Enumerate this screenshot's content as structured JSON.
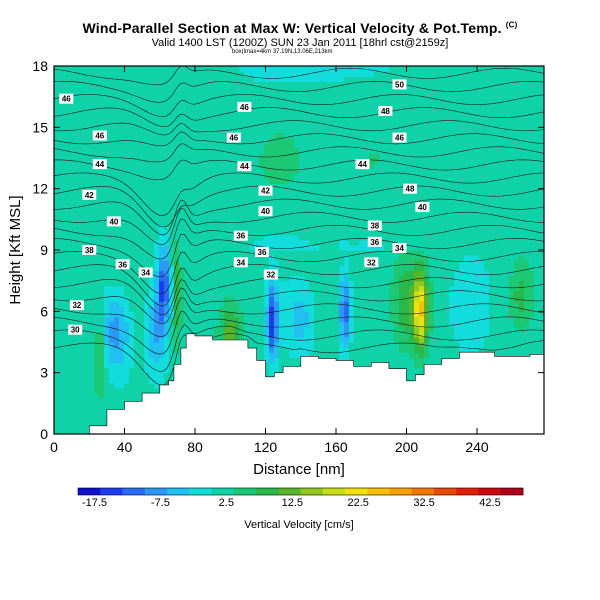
{
  "header": {
    "title": "Wind-Parallel Section at Max W: Vertical Velocity & Pot.Temp.",
    "title_mark": "(C)",
    "subtitle": "Valid 1400 LST (1200Z) SUN 23 Jan 2011 [18hrl cst@2159z]",
    "subtitle2": "box(lmax=4km 37.19N,13.06E,213km"
  },
  "chart_data": {
    "type": "heatmap",
    "title": "Wind-Parallel Section at Max W: Vertical Velocity & Pot.Temp.",
    "xlabel": "Distance [nm]",
    "ylabel": "Height [Kft MSL]",
    "xlim": [
      0,
      278
    ],
    "ylim": [
      0,
      18
    ],
    "x_ticks": [
      "0",
      "40",
      "80",
      "120",
      "160",
      "200",
      "240"
    ],
    "y_ticks": [
      "0",
      "3",
      "6",
      "9",
      "12",
      "15",
      "18"
    ],
    "x_tick_values": [
      0,
      40,
      80,
      120,
      160,
      200,
      240
    ],
    "y_tick_values": [
      0,
      3,
      6,
      9,
      12,
      15,
      18
    ],
    "colorbar": {
      "title": "Vertical Velocity [cm/s]",
      "min": -20,
      "max": 47.5,
      "tick_labels": [
        "-17.5",
        "-7.5",
        "2.5",
        "12.5",
        "22.5",
        "32.5",
        "42.5"
      ],
      "tick_values": [
        -17.5,
        -7.5,
        2.5,
        12.5,
        22.5,
        32.5,
        42.5
      ],
      "colors": [
        "#1010cc",
        "#1c3cf0",
        "#2a6cf8",
        "#2e98f8",
        "#20c0f0",
        "#12dcdc",
        "#10d2a8",
        "#1cc874",
        "#2ab84a",
        "#5ab42a",
        "#92c81e",
        "#c8dc18",
        "#f0e010",
        "#f8c008",
        "#f8a000",
        "#f07800",
        "#e84a00",
        "#e02000",
        "#c80a0a",
        "#b0001e"
      ]
    },
    "terrain": {
      "x": [
        0,
        10,
        20,
        30,
        40,
        50,
        60,
        65,
        68,
        72,
        75,
        80,
        90,
        100,
        110,
        115,
        120,
        125,
        130,
        140,
        150,
        160,
        170,
        180,
        190,
        200,
        205,
        210,
        220,
        230,
        240,
        250,
        260,
        270,
        278
      ],
      "z": [
        0,
        0,
        0.4,
        1.2,
        1.6,
        2.0,
        2.4,
        2.6,
        3.4,
        4.2,
        4.9,
        4.8,
        4.6,
        4.6,
        4.2,
        3.6,
        2.8,
        3.0,
        3.3,
        3.8,
        3.7,
        3.6,
        3.3,
        3.5,
        3.2,
        2.6,
        2.9,
        3.4,
        3.7,
        4.0,
        4.0,
        3.8,
        3.8,
        3.9,
        3.9
      ]
    },
    "theta_labels": [
      {
        "v": "30",
        "x": 12,
        "y": 5.1
      },
      {
        "v": "32",
        "x": 13,
        "y": 6.3
      },
      {
        "v": "34",
        "x": 52,
        "y": 7.9
      },
      {
        "v": "36",
        "x": 39,
        "y": 8.3
      },
      {
        "v": "38",
        "x": 20,
        "y": 9.0
      },
      {
        "v": "40",
        "x": 34,
        "y": 10.4
      },
      {
        "v": "42",
        "x": 20,
        "y": 11.7
      },
      {
        "v": "44",
        "x": 26,
        "y": 13.2
      },
      {
        "v": "46",
        "x": 26,
        "y": 14.6
      },
      {
        "v": "46",
        "x": 7,
        "y": 16.4
      },
      {
        "v": "32",
        "x": 123,
        "y": 7.8
      },
      {
        "v": "34",
        "x": 106,
        "y": 8.4
      },
      {
        "v": "36",
        "x": 118,
        "y": 8.9
      },
      {
        "v": "36",
        "x": 106,
        "y": 9.7
      },
      {
        "v": "40",
        "x": 120,
        "y": 10.9
      },
      {
        "v": "42",
        "x": 120,
        "y": 11.9
      },
      {
        "v": "44",
        "x": 108,
        "y": 13.1
      },
      {
        "v": "46",
        "x": 102,
        "y": 14.5
      },
      {
        "v": "46",
        "x": 108,
        "y": 16.0
      },
      {
        "v": "32",
        "x": 180,
        "y": 8.4
      },
      {
        "v": "34",
        "x": 196,
        "y": 9.1
      },
      {
        "v": "36",
        "x": 182,
        "y": 9.4
      },
      {
        "v": "38",
        "x": 182,
        "y": 10.2
      },
      {
        "v": "40",
        "x": 209,
        "y": 11.1
      },
      {
        "v": "48",
        "x": 202,
        "y": 12.0
      },
      {
        "v": "44",
        "x": 175,
        "y": 13.2
      },
      {
        "v": "46",
        "x": 196,
        "y": 14.5
      },
      {
        "v": "48",
        "x": 188,
        "y": 15.8
      },
      {
        "v": "50",
        "x": 196,
        "y": 17.1
      }
    ],
    "velocity_features": [
      {
        "x": 70,
        "y": 6.8,
        "w": 10,
        "sx": 2.5,
        "sy": 2.4
      },
      {
        "x": 62,
        "y": 7.3,
        "w": -14,
        "sx": 3.5,
        "sy": 1.8
      },
      {
        "x": 58,
        "y": 5.0,
        "w": -8,
        "sx": 6,
        "sy": 2.0
      },
      {
        "x": 26,
        "y": 4.0,
        "w": 8,
        "sx": 3,
        "sy": 2.0
      },
      {
        "x": 35,
        "y": 5.0,
        "w": -10,
        "sx": 8,
        "sy": 1.8
      },
      {
        "x": 100,
        "y": 4.8,
        "w": 10,
        "sx": 6,
        "sy": 1.4
      },
      {
        "x": 124,
        "y": 5.5,
        "w": -18,
        "sx": 3,
        "sy": 1.8
      },
      {
        "x": 140,
        "y": 5.6,
        "w": -6,
        "sx": 8,
        "sy": 1.6
      },
      {
        "x": 165,
        "y": 6.0,
        "w": -14,
        "sx": 3,
        "sy": 1.8
      },
      {
        "x": 208,
        "y": 6.0,
        "w": 20,
        "sx": 4,
        "sy": 1.8
      },
      {
        "x": 200,
        "y": 6.5,
        "w": 8,
        "sx": 9,
        "sy": 2.2
      },
      {
        "x": 235,
        "y": 6.2,
        "w": -4,
        "sx": 10,
        "sy": 2.0
      },
      {
        "x": 265,
        "y": 6.8,
        "w": 6,
        "sx": 6,
        "sy": 1.6
      }
    ]
  }
}
